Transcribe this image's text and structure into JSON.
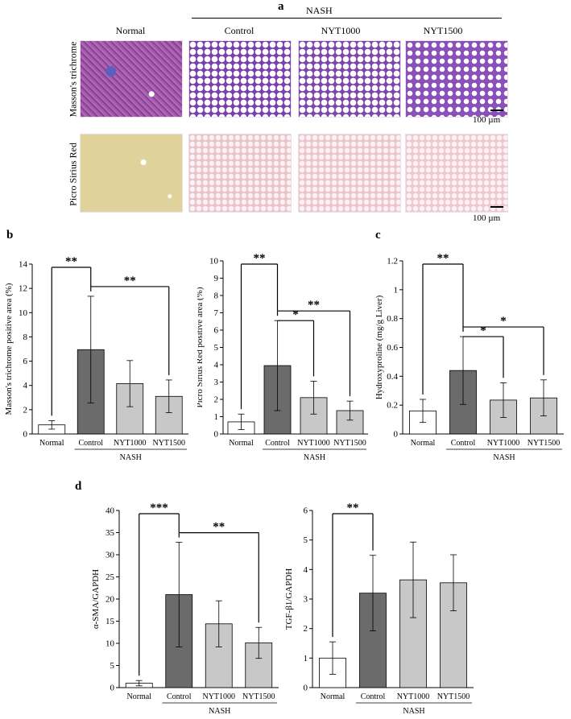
{
  "panels": {
    "a": "a",
    "b": "b",
    "c": "c",
    "d": "d"
  },
  "histology": {
    "group_header": "NASH",
    "columns": [
      "Normal",
      "Control",
      "NYT1000",
      "NYT1500"
    ],
    "rows": [
      "Masson's trichrome",
      "Picro Sirius Red"
    ],
    "scale_bar": "100 µm",
    "colors": {
      "masson_normal": "#9a4fa6",
      "masson_nash": "#7b3fb0",
      "sirius_normal": "#e0d49a",
      "sirius_nash": "#eec9d0"
    }
  },
  "chart_data": [
    {
      "type": "bar",
      "id": "masson",
      "categories": [
        "Normal",
        "Control",
        "NYT1000",
        "NYT1500"
      ],
      "group_label": "NASH",
      "values": [
        0.75,
        6.95,
        4.15,
        3.1
      ],
      "errors": [
        0.35,
        4.4,
        1.9,
        1.35
      ],
      "fills": [
        "#ffffff",
        "#6b6b6b",
        "#c8c8c8",
        "#c8c8c8"
      ],
      "ylabel": "Masson's trichrome positive area (%)",
      "ylim": [
        0,
        14
      ],
      "yticks": [
        0,
        2,
        4,
        6,
        8,
        10,
        12,
        14
      ],
      "significance": [
        {
          "from": 0,
          "to": 1,
          "label": "**"
        },
        {
          "from": 1,
          "to": 3,
          "label": "**"
        }
      ]
    },
    {
      "type": "bar",
      "id": "sirius",
      "categories": [
        "Normal",
        "Control",
        "NYT1000",
        "NYT1500"
      ],
      "group_label": "NASH",
      "values": [
        0.7,
        3.95,
        2.1,
        1.35
      ],
      "errors": [
        0.45,
        2.6,
        0.95,
        0.55
      ],
      "fills": [
        "#ffffff",
        "#6b6b6b",
        "#c8c8c8",
        "#c8c8c8"
      ],
      "ylabel": "Picro Sirius Red positive area (%)",
      "ylim": [
        0,
        10
      ],
      "yticks": [
        0,
        1,
        2,
        3,
        4,
        5,
        6,
        7,
        8,
        9,
        10
      ],
      "significance": [
        {
          "from": 0,
          "to": 1,
          "label": "**"
        },
        {
          "from": 1,
          "to": 2,
          "label": "*"
        },
        {
          "from": 1,
          "to": 3,
          "label": "**"
        }
      ]
    },
    {
      "type": "bar",
      "id": "hydroxyproline",
      "categories": [
        "Normal",
        "Control",
        "NYT1000",
        "NYT1500"
      ],
      "group_label": "NASH",
      "values": [
        0.16,
        0.44,
        0.235,
        0.25
      ],
      "errors": [
        0.08,
        0.235,
        0.12,
        0.125
      ],
      "fills": [
        "#ffffff",
        "#6b6b6b",
        "#c8c8c8",
        "#c8c8c8"
      ],
      "ylabel": "Hydroxyproline (mg/g Liver)",
      "ylim": [
        0,
        1.2
      ],
      "yticks": [
        0,
        0.2,
        0.4,
        0.6,
        0.8,
        1,
        1.2
      ],
      "significance": [
        {
          "from": 0,
          "to": 1,
          "label": "**"
        },
        {
          "from": 1,
          "to": 2,
          "label": "*"
        },
        {
          "from": 1,
          "to": 3,
          "label": "*"
        }
      ]
    },
    {
      "type": "bar",
      "id": "asma",
      "categories": [
        "Normal",
        "Control",
        "NYT1000",
        "NYT1500"
      ],
      "group_label": "NASH",
      "values": [
        1.0,
        21.0,
        14.4,
        10.1
      ],
      "errors": [
        0.6,
        11.8,
        5.2,
        3.5
      ],
      "fills": [
        "#ffffff",
        "#6b6b6b",
        "#c8c8c8",
        "#c8c8c8"
      ],
      "ylabel": "α-SMA/GAPDH",
      "ylim": [
        0,
        40
      ],
      "yticks": [
        0,
        5,
        10,
        15,
        20,
        25,
        30,
        35,
        40
      ],
      "significance": [
        {
          "from": 0,
          "to": 1,
          "label": "***"
        },
        {
          "from": 1,
          "to": 3,
          "label": "**"
        }
      ]
    },
    {
      "type": "bar",
      "id": "tgfb1",
      "categories": [
        "Normal",
        "Control",
        "NYT1000",
        "NYT1500"
      ],
      "group_label": "NASH",
      "values": [
        1.0,
        3.2,
        3.65,
        3.55
      ],
      "errors": [
        0.55,
        1.28,
        1.28,
        0.95
      ],
      "fills": [
        "#ffffff",
        "#6b6b6b",
        "#c8c8c8",
        "#c8c8c8"
      ],
      "ylabel": "TGF-β1/GAPDH",
      "ylim": [
        0,
        6
      ],
      "yticks": [
        0,
        1,
        2,
        3,
        4,
        5,
        6
      ],
      "significance": [
        {
          "from": 0,
          "to": 1,
          "label": "**"
        }
      ]
    }
  ]
}
